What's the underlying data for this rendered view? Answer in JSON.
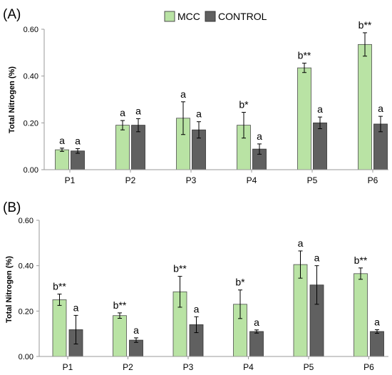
{
  "legend": {
    "items": [
      {
        "label": "MCC",
        "color": "#b9e3a4"
      },
      {
        "label": "CONTROL",
        "color": "#606060"
      }
    ]
  },
  "colors": {
    "mcc_fill": "#b9e3a4",
    "mcc_stroke": "#4d4d4d",
    "control_fill": "#606060",
    "control_stroke": "#333333",
    "error_bar": "#000000"
  },
  "chart_data": [
    {
      "type": "bar",
      "panel_label": "(A)",
      "ylabel": "Total Nitrogen (%)",
      "ylim": [
        0,
        0.6
      ],
      "yticks": [
        "0.00",
        "0.20",
        "0.40",
        "0.60"
      ],
      "grid": false,
      "legend_position": "top-center",
      "categories": [
        "P1",
        "P2",
        "P3",
        "P4",
        "P5",
        "P6"
      ],
      "series": [
        {
          "name": "MCC",
          "values": [
            0.085,
            0.19,
            0.22,
            0.19,
            0.435,
            0.535
          ],
          "errors": [
            0.007,
            0.02,
            0.07,
            0.055,
            0.02,
            0.05
          ],
          "labels": [
            "a",
            "a",
            "a",
            "b*",
            "b**",
            "b**"
          ]
        },
        {
          "name": "CONTROL",
          "values": [
            0.08,
            0.19,
            0.17,
            0.088,
            0.2,
            0.195
          ],
          "errors": [
            0.01,
            0.028,
            0.035,
            0.022,
            0.025,
            0.033
          ],
          "labels": [
            "a",
            "a",
            "a",
            "a",
            "a",
            "a"
          ]
        }
      ]
    },
    {
      "type": "bar",
      "panel_label": "(B)",
      "ylabel": "Total Nitrogen (%)",
      "ylim": [
        0,
        0.6
      ],
      "yticks": [
        "0.00",
        "0.20",
        "0.40",
        "0.60"
      ],
      "grid": false,
      "categories": [
        "P1",
        "P2",
        "P3",
        "P4",
        "P5",
        "P6"
      ],
      "series": [
        {
          "name": "MCC",
          "values": [
            0.25,
            0.18,
            0.285,
            0.23,
            0.405,
            0.365
          ],
          "errors": [
            0.025,
            0.012,
            0.068,
            0.063,
            0.06,
            0.025
          ],
          "labels": [
            "b**",
            "b**",
            "b**",
            "b*",
            "a",
            "b**"
          ]
        },
        {
          "name": "CONTROL",
          "values": [
            0.118,
            0.072,
            0.14,
            0.11,
            0.315,
            0.11
          ],
          "errors": [
            0.063,
            0.01,
            0.035,
            0.007,
            0.085,
            0.008
          ],
          "labels": [
            "a",
            "a",
            "a",
            "a",
            "a",
            "a"
          ]
        }
      ]
    }
  ]
}
